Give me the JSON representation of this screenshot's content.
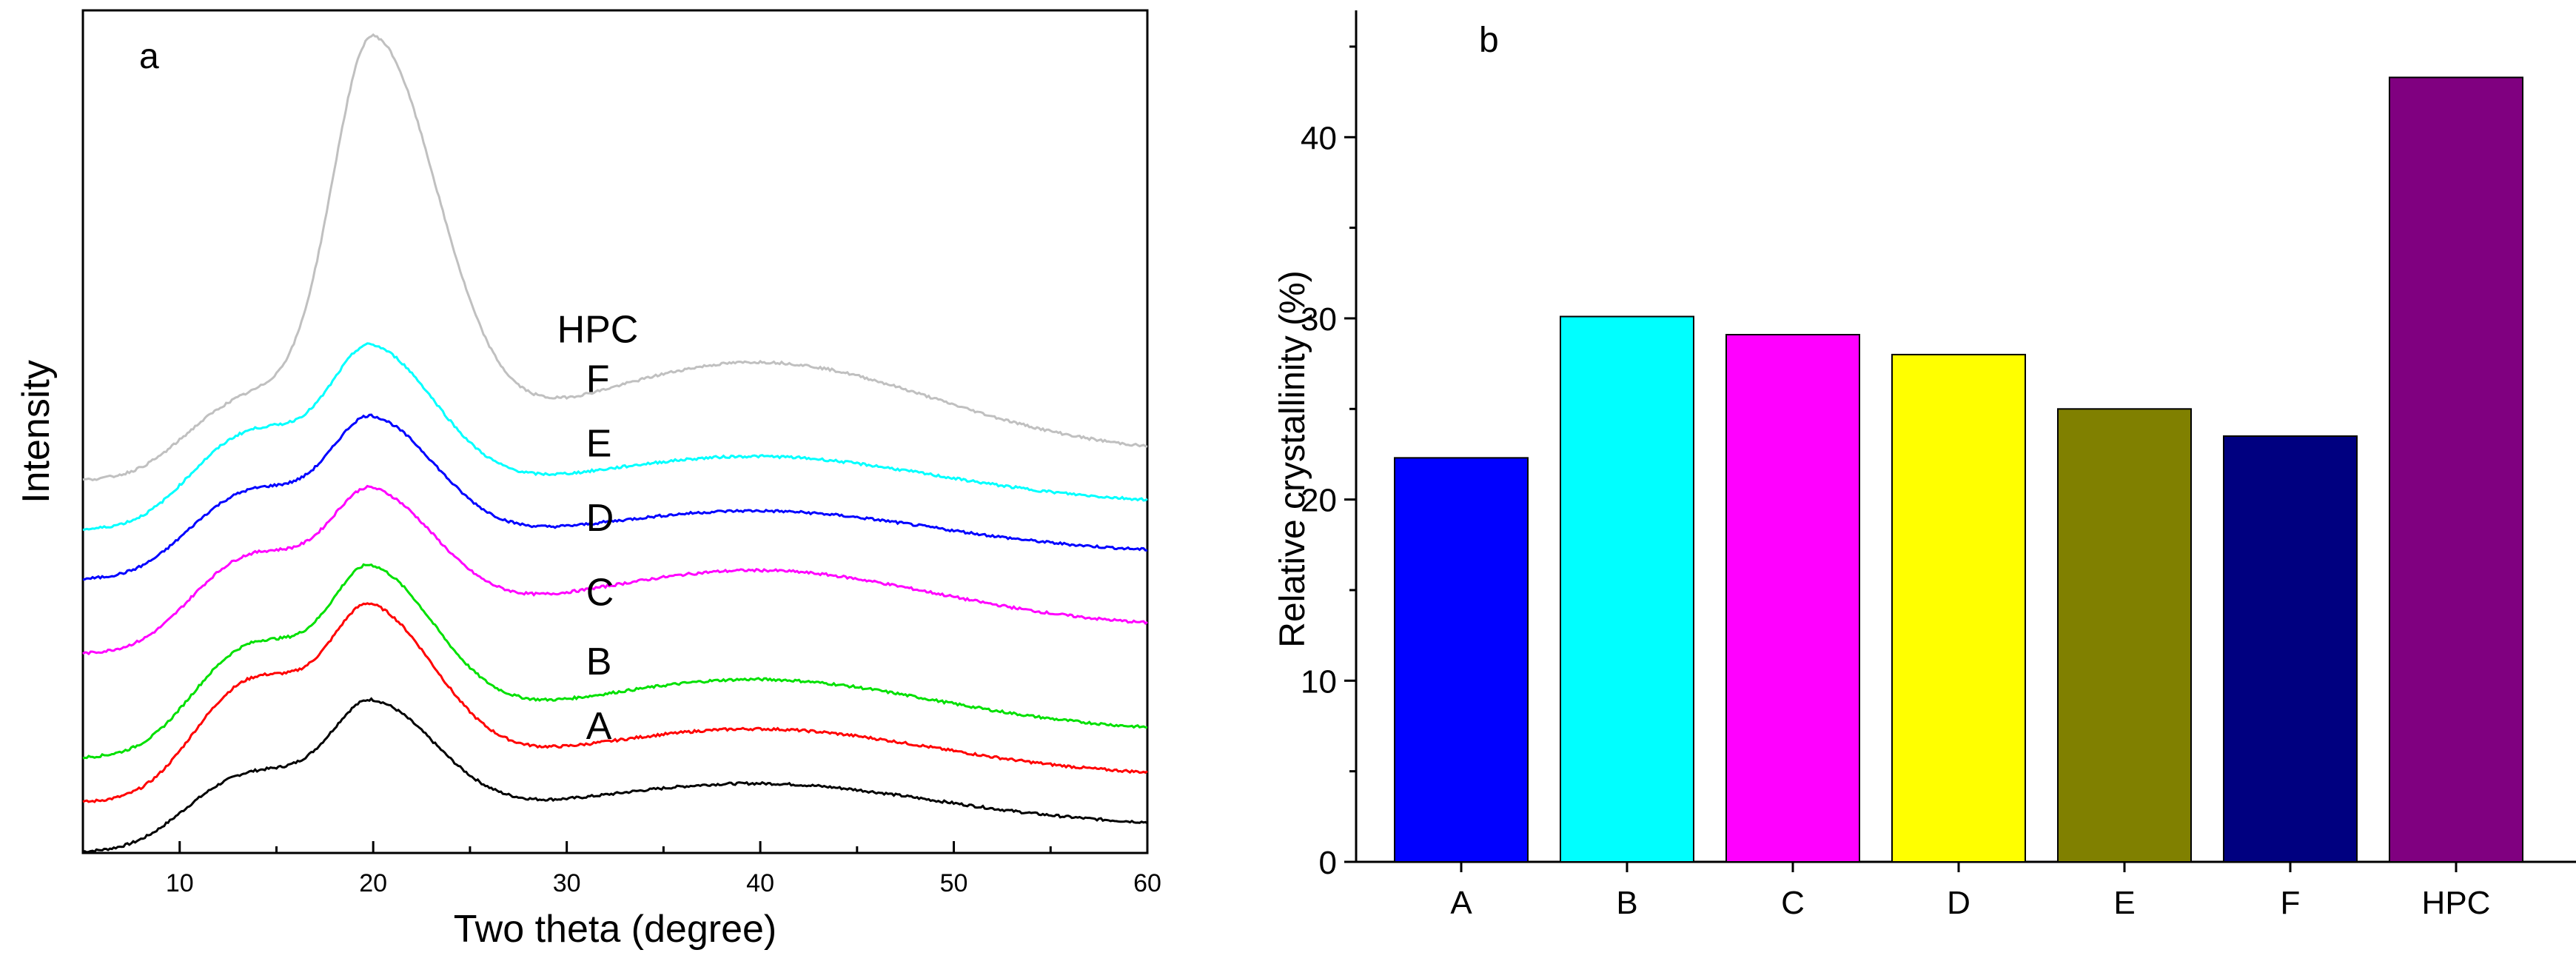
{
  "chart_data": [
    {
      "type": "line",
      "panel_label": "a",
      "xlabel": "Two theta (degree)",
      "ylabel": "Intensity",
      "xlim": [
        5,
        60
      ],
      "ylim": [
        0,
        17
      ],
      "xticks": [
        10,
        20,
        30,
        40,
        50,
        60
      ],
      "y_tick_labels": false,
      "grid": false,
      "series": [
        {
          "name": "A",
          "color": "#000000",
          "offset": 0.0,
          "base": 0.5,
          "peak": 2.2,
          "shoulder": 0.9,
          "tail": 0.8,
          "label_pos": [
            31,
            2.3
          ]
        },
        {
          "name": "B",
          "color": "#ff0000",
          "offset": 1.0,
          "base": 0.5,
          "peak": 3.0,
          "shoulder": 1.8,
          "tail": 0.9,
          "label_pos": [
            31,
            3.6
          ]
        },
        {
          "name": "C",
          "color": "#00e000",
          "offset": 1.9,
          "base": 0.5,
          "peak": 2.9,
          "shoulder": 1.6,
          "tail": 1.0,
          "label_pos": [
            31,
            5.0
          ]
        },
        {
          "name": "D",
          "color": "#ff00ff",
          "offset": 4.0,
          "base": 0.5,
          "peak": 2.4,
          "shoulder": 1.3,
          "tail": 1.1,
          "label_pos": [
            31,
            6.5
          ]
        },
        {
          "name": "E",
          "color": "#0000ff",
          "offset": 5.5,
          "base": 0.5,
          "peak": 2.4,
          "shoulder": 1.1,
          "tail": 0.8,
          "label_pos": [
            31,
            8.0
          ]
        },
        {
          "name": "F",
          "color": "#00ffff",
          "offset": 6.5,
          "base": 0.5,
          "peak": 2.8,
          "shoulder": 1.3,
          "tail": 0.9,
          "label_pos": [
            31,
            9.3
          ]
        },
        {
          "name": "HPC",
          "color": "#c0c0c0",
          "offset": 7.5,
          "base": 0.5,
          "peak": 8.0,
          "shoulder": 1.0,
          "tail": 1.8,
          "label_pos": [
            29.5,
            10.3
          ]
        }
      ]
    },
    {
      "type": "bar",
      "panel_label": "b",
      "xlabel": "",
      "ylabel": "Relative crystallinity (%)",
      "ylim": [
        0,
        47
      ],
      "yticks": [
        0,
        10,
        20,
        30,
        40
      ],
      "grid": false,
      "categories": [
        "A",
        "B",
        "C",
        "D",
        "E",
        "F",
        "HPC"
      ],
      "values": [
        22.3,
        30.1,
        29.1,
        28.0,
        25.0,
        23.5,
        43.3
      ],
      "colors": [
        "#0000ff",
        "#00ffff",
        "#ff00ff",
        "#ffff00",
        "#808000",
        "#000080",
        "#800080"
      ]
    }
  ]
}
